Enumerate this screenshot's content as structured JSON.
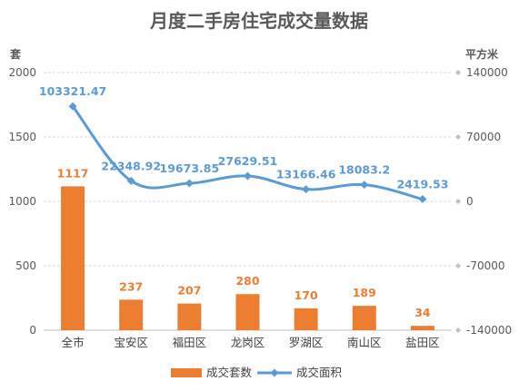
{
  "chart_data": {
    "type": "bar",
    "title": "月度二手房住宅成交量数据",
    "categories": [
      "全市",
      "宝安区",
      "福田区",
      "龙岗区",
      "罗湖区",
      "南山区",
      "盐田区"
    ],
    "series": [
      {
        "name": "成交套数",
        "type": "bar",
        "axis": "left",
        "color": "#ED7D31",
        "values": [
          1117,
          237,
          207,
          280,
          170,
          189,
          34
        ],
        "labels": [
          "1117",
          "237",
          "207",
          "280",
          "170",
          "189",
          "34"
        ]
      },
      {
        "name": "成交面积",
        "type": "line",
        "axis": "right",
        "color": "#5B9BD5",
        "values": [
          103321.47,
          22348.92,
          19673.85,
          27629.51,
          13166.46,
          18083.2,
          2419.53
        ],
        "labels": [
          "103321.47",
          "22348.92",
          "19673.85",
          "27629.51",
          "13166.46",
          "18083.2",
          "2419.53"
        ]
      }
    ],
    "ylabel_left": "套",
    "ylabel_right": "平方米",
    "ylim_left": [
      0,
      2000
    ],
    "ylim_right": [
      -140000,
      140000
    ],
    "yticks_left": [
      "0",
      "500",
      "1000",
      "1500",
      "2000"
    ],
    "yticks_right": [
      "-140000",
      "-70000",
      "0",
      "70000",
      "140000"
    ],
    "grid": true,
    "legend": "bottom"
  }
}
